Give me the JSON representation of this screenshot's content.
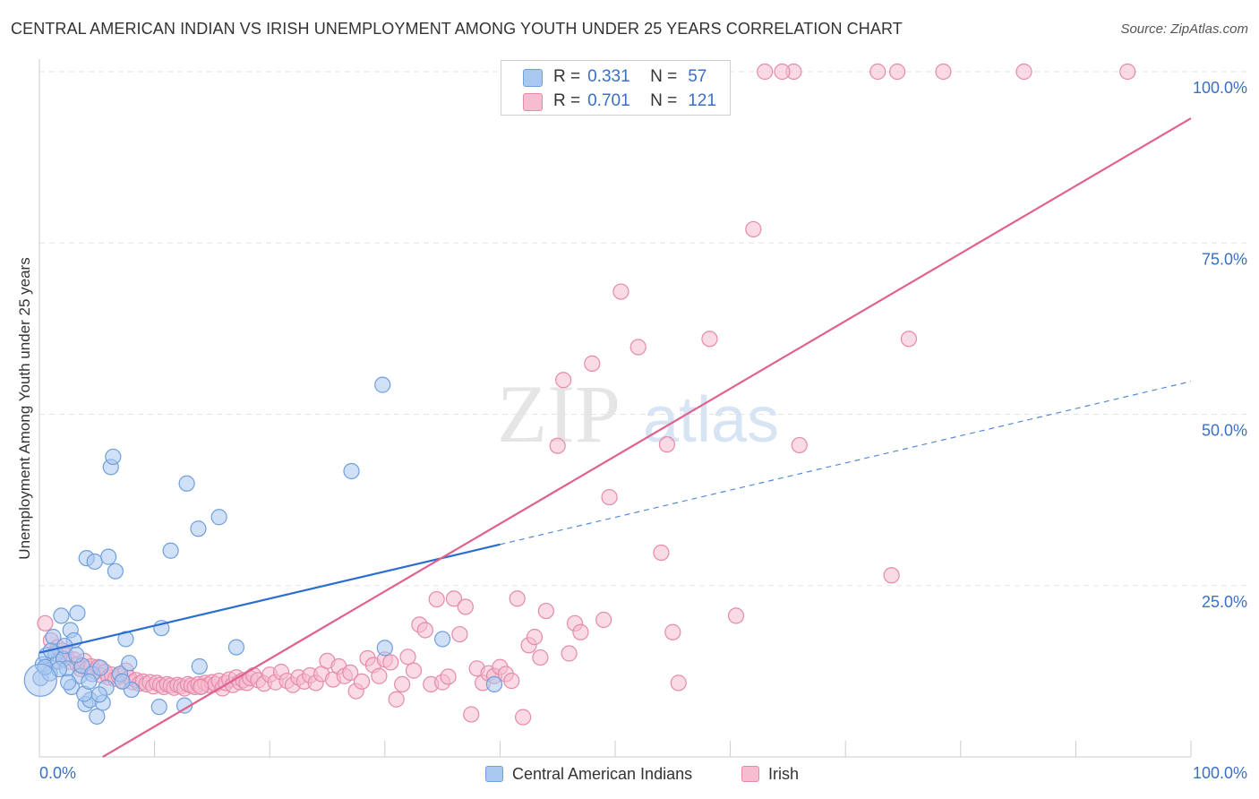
{
  "title": "CENTRAL AMERICAN INDIAN VS IRISH UNEMPLOYMENT AMONG YOUTH UNDER 25 YEARS CORRELATION CHART",
  "source": "Source: ZipAtlas.com",
  "watermark": {
    "zip": "ZIP",
    "atlas": "atlas"
  },
  "legend_top": {
    "rows": [
      {
        "r_label": "R =",
        "r_value": "0.331",
        "n_label": "N =",
        "n_value": "57"
      },
      {
        "r_label": "R =",
        "r_value": "0.701",
        "n_label": "N =",
        "n_value": "121"
      }
    ]
  },
  "colors": {
    "blue_fill": "#a9c8f0",
    "blue_stroke": "#6f9fdc",
    "blue_line": "#2a6ecf",
    "pink_fill": "#f6bcd0",
    "pink_stroke": "#e58aab",
    "pink_line": "#e0608e",
    "tick_label": "#3a6fc4",
    "grid": "#e3e3e3"
  },
  "chart_data": {
    "type": "scatter",
    "title": "CENTRAL AMERICAN INDIAN VS IRISH UNEMPLOYMENT AMONG YOUTH UNDER 25 YEARS CORRELATION CHART",
    "xlabel": "",
    "ylabel": "Unemployment Among Youth under 25 years",
    "xlim": [
      0,
      100
    ],
    "ylim": [
      0,
      100
    ],
    "x_tick_labels": [
      "0.0%",
      "100.0%"
    ],
    "y_tick_labels": [
      "25.0%",
      "50.0%",
      "75.0%",
      "100.0%"
    ],
    "y_ticks": [
      25,
      50,
      75,
      100
    ],
    "grid": true,
    "legend_position": "top-center",
    "series": [
      {
        "name": "Central American Indians",
        "R": 0.331,
        "N": 57,
        "trend": {
          "x": [
            0,
            40
          ],
          "y": [
            15.2,
            31.0
          ],
          "dashed_extension_to": [
            100,
            54.8
          ]
        },
        "points": [
          [
            0.1,
            11.5
          ],
          [
            0.3,
            13.5
          ],
          [
            0.6,
            14.8
          ],
          [
            0.9,
            12.2
          ],
          [
            1.2,
            17.5
          ],
          [
            1.4,
            15.1
          ],
          [
            1.6,
            13.9
          ],
          [
            1.9,
            20.6
          ],
          [
            2.1,
            14.3
          ],
          [
            2.4,
            12.9
          ],
          [
            2.7,
            18.5
          ],
          [
            2.8,
            10.2
          ],
          [
            3.0,
            17.0
          ],
          [
            3.3,
            21.0
          ],
          [
            3.5,
            11.8
          ],
          [
            3.7,
            13.3
          ],
          [
            4.0,
            7.7
          ],
          [
            4.1,
            29.0
          ],
          [
            4.4,
            8.3
          ],
          [
            4.6,
            12.1
          ],
          [
            4.8,
            28.5
          ],
          [
            5.0,
            5.9
          ],
          [
            5.3,
            13.0
          ],
          [
            5.5,
            7.9
          ],
          [
            5.8,
            10.1
          ],
          [
            6.0,
            29.2
          ],
          [
            6.2,
            42.3
          ],
          [
            6.4,
            43.8
          ],
          [
            6.6,
            27.1
          ],
          [
            7.0,
            12.1
          ],
          [
            7.5,
            17.2
          ],
          [
            7.8,
            13.7
          ],
          [
            8.0,
            9.8
          ],
          [
            10.4,
            7.3
          ],
          [
            10.6,
            18.8
          ],
          [
            11.4,
            30.1
          ],
          [
            12.6,
            7.5
          ],
          [
            12.8,
            39.9
          ],
          [
            13.8,
            33.3
          ],
          [
            13.9,
            13.2
          ],
          [
            15.6,
            35.0
          ],
          [
            17.1,
            16.0
          ],
          [
            27.1,
            41.7
          ],
          [
            29.8,
            54.3
          ],
          [
            30.0,
            15.9
          ],
          [
            35.0,
            17.2
          ],
          [
            39.5,
            10.6
          ],
          [
            0.5,
            13.1
          ],
          [
            1.0,
            15.5
          ],
          [
            1.7,
            12.8
          ],
          [
            2.2,
            16.2
          ],
          [
            2.5,
            10.9
          ],
          [
            3.2,
            14.9
          ],
          [
            3.9,
            9.2
          ],
          [
            4.3,
            11.0
          ],
          [
            5.2,
            9.1
          ],
          [
            7.2,
            11.0
          ]
        ]
      },
      {
        "name": "Irish",
        "R": 0.701,
        "N": 121,
        "trend": {
          "x": [
            5.5,
            100
          ],
          "y": [
            0,
            93.2
          ]
        },
        "points": [
          [
            0.5,
            19.5
          ],
          [
            1.0,
            17.0
          ],
          [
            1.3,
            14.0
          ],
          [
            1.6,
            16.0
          ],
          [
            2.0,
            15.5
          ],
          [
            2.3,
            14.8
          ],
          [
            2.6,
            13.9
          ],
          [
            3.0,
            14.2
          ],
          [
            3.3,
            13.5
          ],
          [
            3.6,
            12.8
          ],
          [
            3.9,
            14.0
          ],
          [
            4.2,
            12.9
          ],
          [
            4.5,
            13.2
          ],
          [
            4.8,
            12.5
          ],
          [
            5.1,
            13.1
          ],
          [
            5.4,
            11.9
          ],
          [
            5.7,
            12.4
          ],
          [
            6.0,
            11.6
          ],
          [
            6.3,
            12.0
          ],
          [
            6.6,
            11.4
          ],
          [
            6.9,
            11.8
          ],
          [
            7.2,
            11.1
          ],
          [
            7.5,
            12.6
          ],
          [
            7.8,
            11.5
          ],
          [
            8.1,
            10.9
          ],
          [
            8.4,
            11.2
          ],
          [
            8.7,
            10.7
          ],
          [
            9.0,
            11.0
          ],
          [
            9.3,
            10.6
          ],
          [
            9.6,
            10.9
          ],
          [
            9.9,
            10.3
          ],
          [
            10.2,
            10.8
          ],
          [
            10.5,
            10.5
          ],
          [
            10.8,
            10.2
          ],
          [
            11.1,
            10.6
          ],
          [
            11.4,
            10.4
          ],
          [
            11.7,
            10.1
          ],
          [
            12.0,
            10.5
          ],
          [
            12.3,
            10.3
          ],
          [
            12.6,
            10.0
          ],
          [
            12.9,
            10.6
          ],
          [
            13.2,
            10.4
          ],
          [
            13.5,
            10.2
          ],
          [
            13.8,
            10.6
          ],
          [
            14.1,
            10.3
          ],
          [
            14.4,
            10.8
          ],
          [
            14.7,
            10.5
          ],
          [
            15.0,
            10.9
          ],
          [
            15.3,
            10.6
          ],
          [
            15.6,
            11.1
          ],
          [
            15.9,
            10.0
          ],
          [
            16.2,
            10.8
          ],
          [
            16.5,
            11.3
          ],
          [
            16.8,
            10.5
          ],
          [
            17.1,
            11.6
          ],
          [
            17.4,
            10.9
          ],
          [
            17.7,
            11.2
          ],
          [
            18.0,
            10.8
          ],
          [
            18.3,
            11.5
          ],
          [
            18.6,
            11.9
          ],
          [
            19.0,
            11.2
          ],
          [
            19.5,
            10.7
          ],
          [
            20.0,
            12.0
          ],
          [
            20.5,
            10.9
          ],
          [
            21.0,
            12.4
          ],
          [
            21.5,
            11.1
          ],
          [
            22.0,
            10.5
          ],
          [
            22.5,
            11.6
          ],
          [
            23.0,
            11.0
          ],
          [
            23.5,
            11.9
          ],
          [
            24.0,
            10.8
          ],
          [
            24.5,
            12.1
          ],
          [
            25.0,
            14.0
          ],
          [
            25.5,
            11.3
          ],
          [
            26.0,
            13.2
          ],
          [
            26.5,
            11.8
          ],
          [
            27.0,
            12.3
          ],
          [
            27.5,
            9.6
          ],
          [
            28.0,
            11.0
          ],
          [
            28.5,
            14.4
          ],
          [
            29.0,
            13.4
          ],
          [
            29.5,
            11.8
          ],
          [
            30.0,
            14.2
          ],
          [
            30.5,
            13.8
          ],
          [
            31.0,
            8.4
          ],
          [
            31.5,
            10.6
          ],
          [
            32.0,
            14.6
          ],
          [
            32.5,
            12.6
          ],
          [
            33.0,
            19.3
          ],
          [
            33.5,
            18.5
          ],
          [
            34.0,
            10.6
          ],
          [
            34.5,
            23.0
          ],
          [
            35.0,
            10.9
          ],
          [
            35.5,
            11.7
          ],
          [
            36.0,
            23.1
          ],
          [
            36.5,
            17.9
          ],
          [
            37.0,
            21.9
          ],
          [
            37.5,
            6.2
          ],
          [
            38.0,
            12.9
          ],
          [
            38.5,
            10.8
          ],
          [
            39.0,
            12.2
          ],
          [
            39.5,
            11.8
          ],
          [
            40.0,
            13.1
          ],
          [
            40.5,
            12.1
          ],
          [
            41.0,
            11.1
          ],
          [
            41.5,
            23.1
          ],
          [
            42.0,
            5.8
          ],
          [
            42.5,
            16.3
          ],
          [
            43.0,
            17.5
          ],
          [
            43.5,
            14.5
          ],
          [
            44.0,
            21.3
          ],
          [
            45.0,
            45.4
          ],
          [
            45.5,
            55.0
          ],
          [
            46.0,
            15.1
          ],
          [
            46.5,
            19.5
          ],
          [
            47.0,
            18.2
          ],
          [
            48.0,
            57.4
          ],
          [
            49.0,
            20.0
          ],
          [
            49.5,
            37.9
          ],
          [
            50.5,
            67.9
          ]
        ]
      }
    ]
  }
}
